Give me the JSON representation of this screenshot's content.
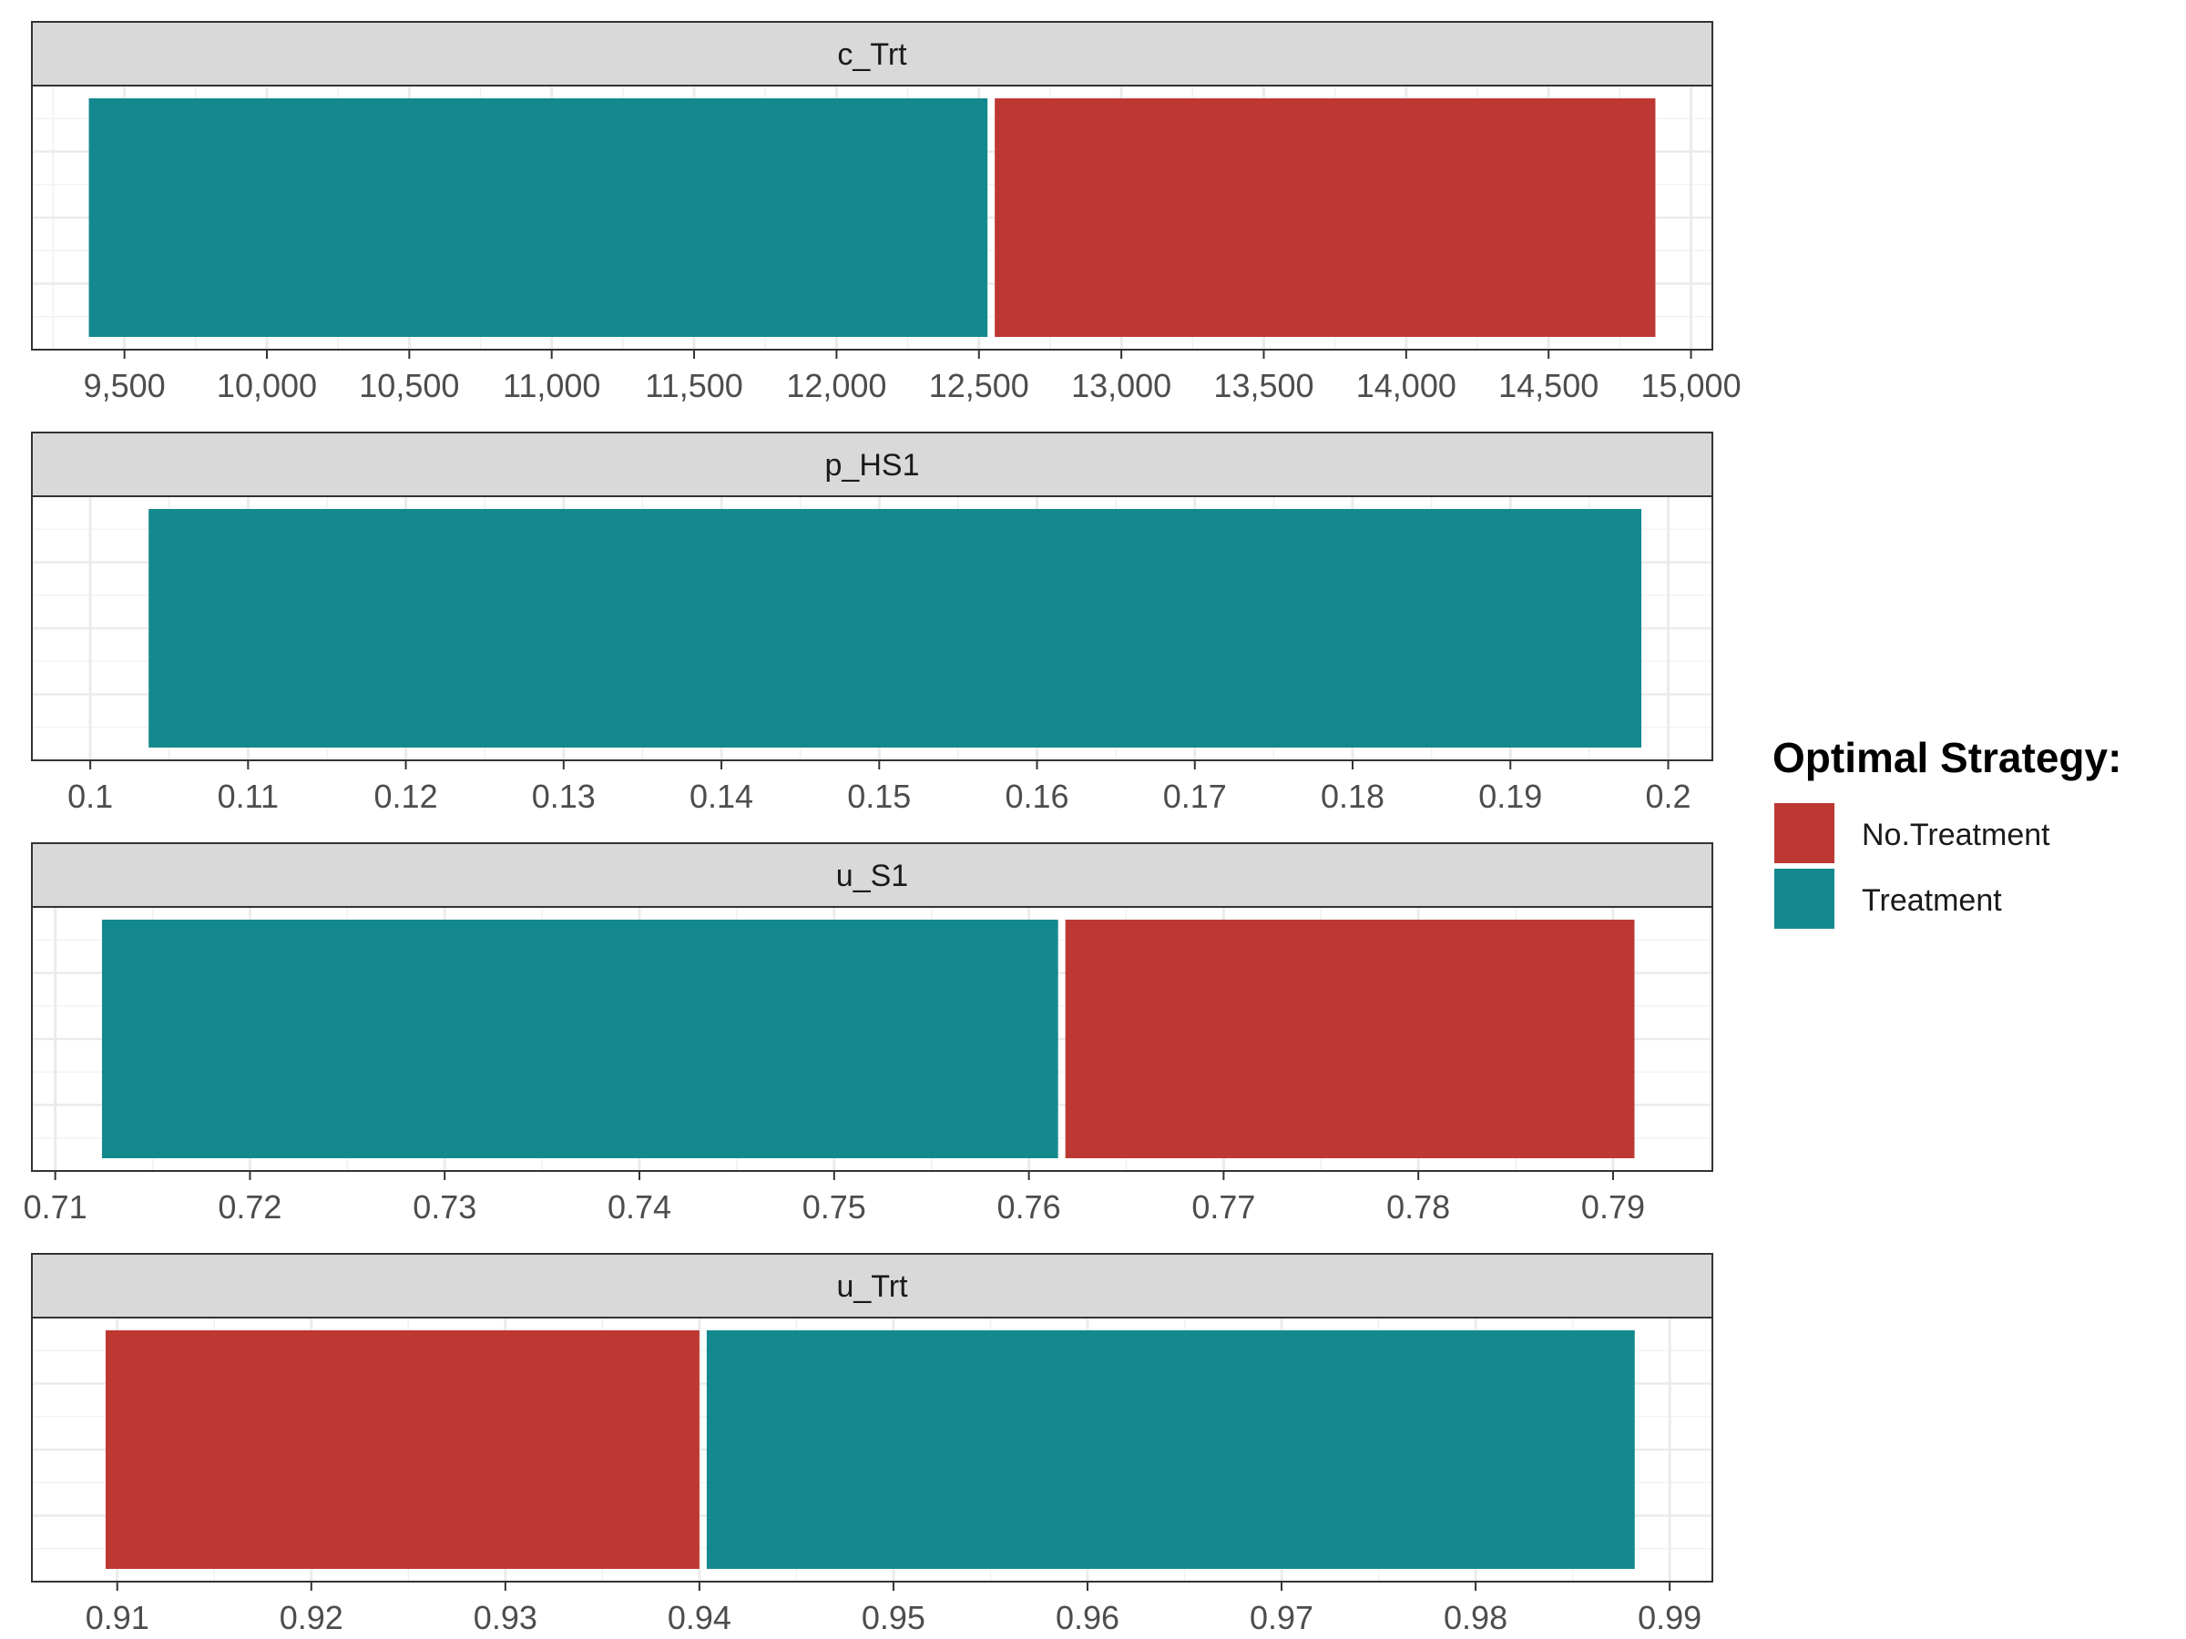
{
  "legend": {
    "title": "Optimal Strategy:",
    "entries": [
      {
        "label": "No.Treatment",
        "color": "#BE3833"
      },
      {
        "label": "Treatment",
        "color": "#14898D"
      }
    ]
  },
  "chart_data": [
    {
      "type": "bar",
      "orientation": "horizontal",
      "facet": "c_Trt",
      "xlim": [
        9175,
        15075
      ],
      "ticks": [
        9500,
        10000,
        10500,
        11000,
        11500,
        12000,
        12500,
        13000,
        13500,
        14000,
        14500,
        15000
      ],
      "tick_labels": [
        "9,500",
        "10,000",
        "10,500",
        "11,000",
        "11,500",
        "12,000",
        "12,500",
        "13,000",
        "13,500",
        "14,000",
        "14,500",
        "15,000"
      ],
      "segments": [
        {
          "strategy": "Treatment",
          "from": 9375,
          "to": 12530
        },
        {
          "strategy": "No.Treatment",
          "from": 12530,
          "to": 14875
        }
      ]
    },
    {
      "type": "bar",
      "orientation": "horizontal",
      "facet": "p_HS1",
      "xlim": [
        0.0963,
        0.2028
      ],
      "ticks": [
        0.1,
        0.11,
        0.12,
        0.13,
        0.14,
        0.15,
        0.16,
        0.17,
        0.18,
        0.19,
        0.2
      ],
      "tick_labels": [
        "0.1",
        "0.11",
        "0.12",
        "0.13",
        "0.14",
        "0.15",
        "0.16",
        "0.17",
        "0.18",
        "0.19",
        "0.2"
      ],
      "segments": [
        {
          "strategy": "Treatment",
          "from": 0.1037,
          "to": 0.1983
        }
      ]
    },
    {
      "type": "bar",
      "orientation": "horizontal",
      "facet": "u_S1",
      "xlim": [
        0.7088,
        0.7951
      ],
      "ticks": [
        0.71,
        0.72,
        0.73,
        0.74,
        0.75,
        0.76,
        0.77,
        0.78,
        0.79
      ],
      "tick_labels": [
        "0.71",
        "0.72",
        "0.73",
        "0.74",
        "0.75",
        "0.76",
        "0.77",
        "0.78",
        "0.79"
      ],
      "segments": [
        {
          "strategy": "Treatment",
          "from": 0.7124,
          "to": 0.7615
        },
        {
          "strategy": "No.Treatment",
          "from": 0.7615,
          "to": 0.7911
        }
      ]
    },
    {
      "type": "bar",
      "orientation": "horizontal",
      "facet": "u_Trt",
      "xlim": [
        0.9056,
        0.9922
      ],
      "ticks": [
        0.91,
        0.92,
        0.93,
        0.94,
        0.95,
        0.96,
        0.97,
        0.98,
        0.99
      ],
      "tick_labels": [
        "0.91",
        "0.92",
        "0.93",
        "0.94",
        "0.95",
        "0.96",
        "0.97",
        "0.98",
        "0.99"
      ],
      "segments": [
        {
          "strategy": "No.Treatment",
          "from": 0.9094,
          "to": 0.94
        },
        {
          "strategy": "Treatment",
          "from": 0.94,
          "to": 0.9882
        }
      ]
    }
  ]
}
